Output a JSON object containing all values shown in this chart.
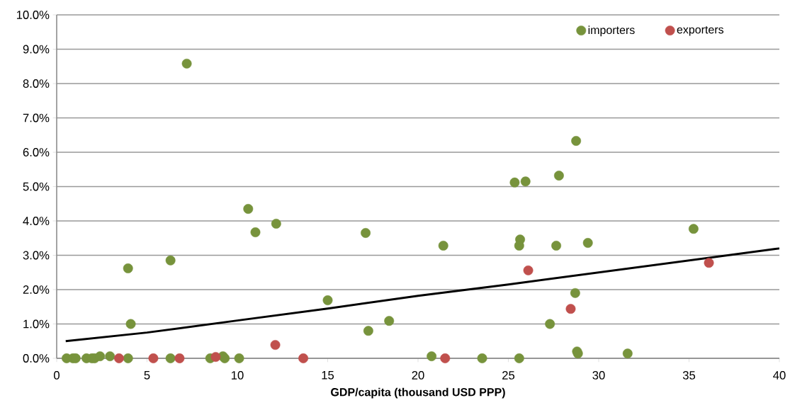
{
  "chart_data": {
    "type": "scatter",
    "xlabel": "GDP/capita (thousand USD PPP)",
    "xlim": [
      0,
      40
    ],
    "xticks": [
      0,
      5,
      10,
      15,
      20,
      25,
      30,
      35,
      40
    ],
    "ylim": [
      0,
      10
    ],
    "yticks": [
      {
        "value": 0,
        "label": "0.0%"
      },
      {
        "value": 1,
        "label": "1.0%"
      },
      {
        "value": 2,
        "label": "2.0%"
      },
      {
        "value": 3,
        "label": "3.0%"
      },
      {
        "value": 4,
        "label": "4.0%"
      },
      {
        "value": 5,
        "label": "5.0%"
      },
      {
        "value": 6,
        "label": "6.0%"
      },
      {
        "value": 7,
        "label": "7.0%"
      },
      {
        "value": 8,
        "label": "8.0%"
      },
      {
        "value": 9,
        "label": "9.0%"
      },
      {
        "value": 10,
        "label": "10.0%"
      }
    ],
    "grid": "y",
    "legend": "top right",
    "series": [
      {
        "name": "importers",
        "marker": "circle",
        "color": "#77933c",
        "x": [
          0.55,
          0.9,
          1.05,
          1.65,
          1.95,
          2.1,
          2.4,
          2.95,
          3.95,
          3.95,
          4.1,
          6.3,
          6.3,
          7.2,
          8.5,
          9.2,
          9.3,
          10.1,
          10.6,
          11.0,
          12.15,
          15.0,
          17.1,
          17.25,
          18.4,
          20.75,
          21.4,
          23.55,
          25.35,
          25.6,
          25.65,
          25.6,
          25.95,
          27.3,
          27.65,
          27.8,
          28.7,
          28.75,
          28.8,
          28.85,
          29.4,
          31.6,
          35.25
        ],
        "values": [
          0,
          0,
          0,
          0,
          0,
          0,
          0.06,
          0.06,
          0,
          2.62,
          1.0,
          2.85,
          0,
          8.58,
          0,
          0.06,
          0,
          0,
          4.35,
          3.67,
          3.92,
          1.69,
          3.65,
          0.8,
          1.09,
          0.06,
          3.28,
          0,
          5.12,
          0,
          3.46,
          3.28,
          5.15,
          1.0,
          3.28,
          5.32,
          1.9,
          6.33,
          0.2,
          0.14,
          3.36,
          0.14,
          3.77
        ]
      },
      {
        "name": "exporters",
        "marker": "circle",
        "color": "#c0504d",
        "x": [
          3.45,
          5.35,
          6.8,
          8.8,
          12.1,
          13.65,
          21.5,
          26.1,
          28.45,
          36.1
        ],
        "values": [
          0,
          0,
          0,
          0.04,
          0.39,
          0,
          0,
          2.56,
          1.44,
          2.78
        ]
      },
      {
        "type": "line",
        "marker": "none",
        "color": "#000000",
        "x": [
          0.5,
          5,
          10,
          15,
          20,
          25,
          30,
          35,
          40
        ],
        "values": [
          0.5,
          0.75,
          1.1,
          1.45,
          1.82,
          2.15,
          2.5,
          2.85,
          3.2
        ]
      }
    ]
  }
}
